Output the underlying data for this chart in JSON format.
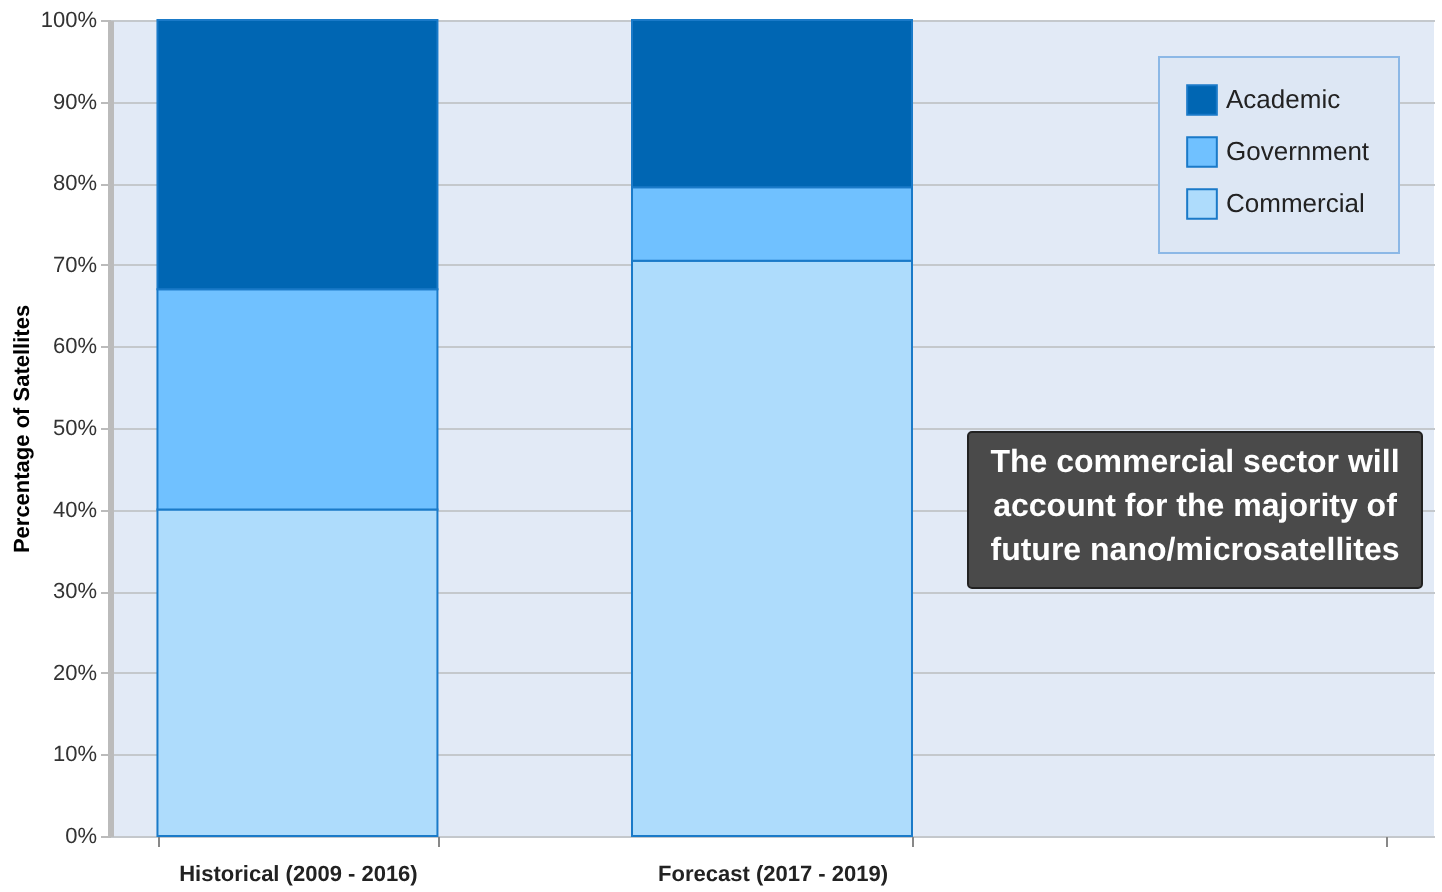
{
  "chart_data": {
    "type": "bar",
    "stacked": true,
    "ylabel": "Percentage of Satellites",
    "categories": [
      "Historical (2009 - 2016)",
      "Forecast (2017 - 2019)",
      null
    ],
    "series": [
      {
        "name": "Commercial",
        "color": "#aedcfc",
        "values": [
          40,
          70.5,
          null
        ]
      },
      {
        "name": "Government",
        "color": "#70c1ff",
        "values": [
          27,
          9,
          null
        ]
      },
      {
        "name": "Academic",
        "color": "#0066b3",
        "values": [
          33,
          20.5,
          null
        ]
      }
    ],
    "ylim": [
      0,
      100
    ],
    "yticks": [
      {
        "value": 0,
        "label": "0%"
      },
      {
        "value": 10,
        "label": "10%"
      },
      {
        "value": 20,
        "label": "20%"
      },
      {
        "value": 30,
        "label": "30%"
      },
      {
        "value": 40,
        "label": "40%"
      },
      {
        "value": 50,
        "label": "50%"
      },
      {
        "value": 60,
        "label": "60%"
      },
      {
        "value": 70,
        "label": "70%"
      },
      {
        "value": 80,
        "label": "80%"
      },
      {
        "value": 90,
        "label": "90%"
      },
      {
        "value": 100,
        "label": "100%"
      }
    ],
    "grid": "y",
    "legend": "top right",
    "annotations": [
      "The commercial sector will\naccount for the majority of\nfuture nano/microsatellites"
    ]
  }
}
